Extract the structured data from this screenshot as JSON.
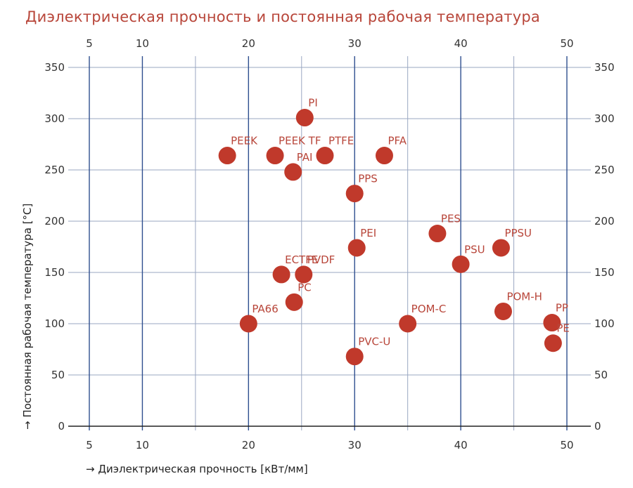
{
  "chart_data": {
    "type": "scatter",
    "title": "Диэлектрическая прочность и постоянная рабочая температура",
    "xlabel": "→ Диэлектрическая прочность [кВт/мм]",
    "ylabel": "→ Постоянная рабочая температура [°C]",
    "xlim": [
      3,
      53
    ],
    "ylim": [
      0,
      350
    ],
    "x_ticks": [
      5,
      10,
      20,
      30,
      40,
      50
    ],
    "x_minor_lines": [
      15,
      25,
      35,
      45
    ],
    "y_ticks": [
      0,
      50,
      100,
      150,
      200,
      250,
      300,
      350
    ],
    "grid": true,
    "colors": {
      "point": "#c0392b",
      "label": "#b8463a",
      "grid_vertical": "#2f4f8f",
      "grid_horizontal": "#9aa7c2",
      "axis": "#222222"
    },
    "points": [
      {
        "label": "PI",
        "x": 25.3,
        "y": 301
      },
      {
        "label": "PEEK",
        "x": 18.0,
        "y": 264
      },
      {
        "label": "PEEK TF",
        "x": 22.5,
        "y": 264
      },
      {
        "label": "PTFE",
        "x": 27.2,
        "y": 264
      },
      {
        "label": "PFA",
        "x": 32.8,
        "y": 264
      },
      {
        "label": "PAI",
        "x": 24.2,
        "y": 248
      },
      {
        "label": "PPS",
        "x": 30.0,
        "y": 227
      },
      {
        "label": "PES",
        "x": 37.8,
        "y": 188
      },
      {
        "label": "PPSU",
        "x": 43.8,
        "y": 174
      },
      {
        "label": "PEI",
        "x": 30.2,
        "y": 174
      },
      {
        "label": "PSU",
        "x": 40.0,
        "y": 158
      },
      {
        "label": "ECTFE",
        "x": 23.1,
        "y": 148
      },
      {
        "label": "PVDF",
        "x": 25.2,
        "y": 148
      },
      {
        "label": "PC",
        "x": 24.3,
        "y": 121
      },
      {
        "label": "POM-H",
        "x": 44.0,
        "y": 112
      },
      {
        "label": "PA66",
        "x": 20.0,
        "y": 100
      },
      {
        "label": "POM-C",
        "x": 35.0,
        "y": 100
      },
      {
        "label": "PP",
        "x": 48.6,
        "y": 101
      },
      {
        "label": "PE",
        "x": 48.7,
        "y": 81
      },
      {
        "label": "PVC-U",
        "x": 30.0,
        "y": 68
      }
    ]
  }
}
